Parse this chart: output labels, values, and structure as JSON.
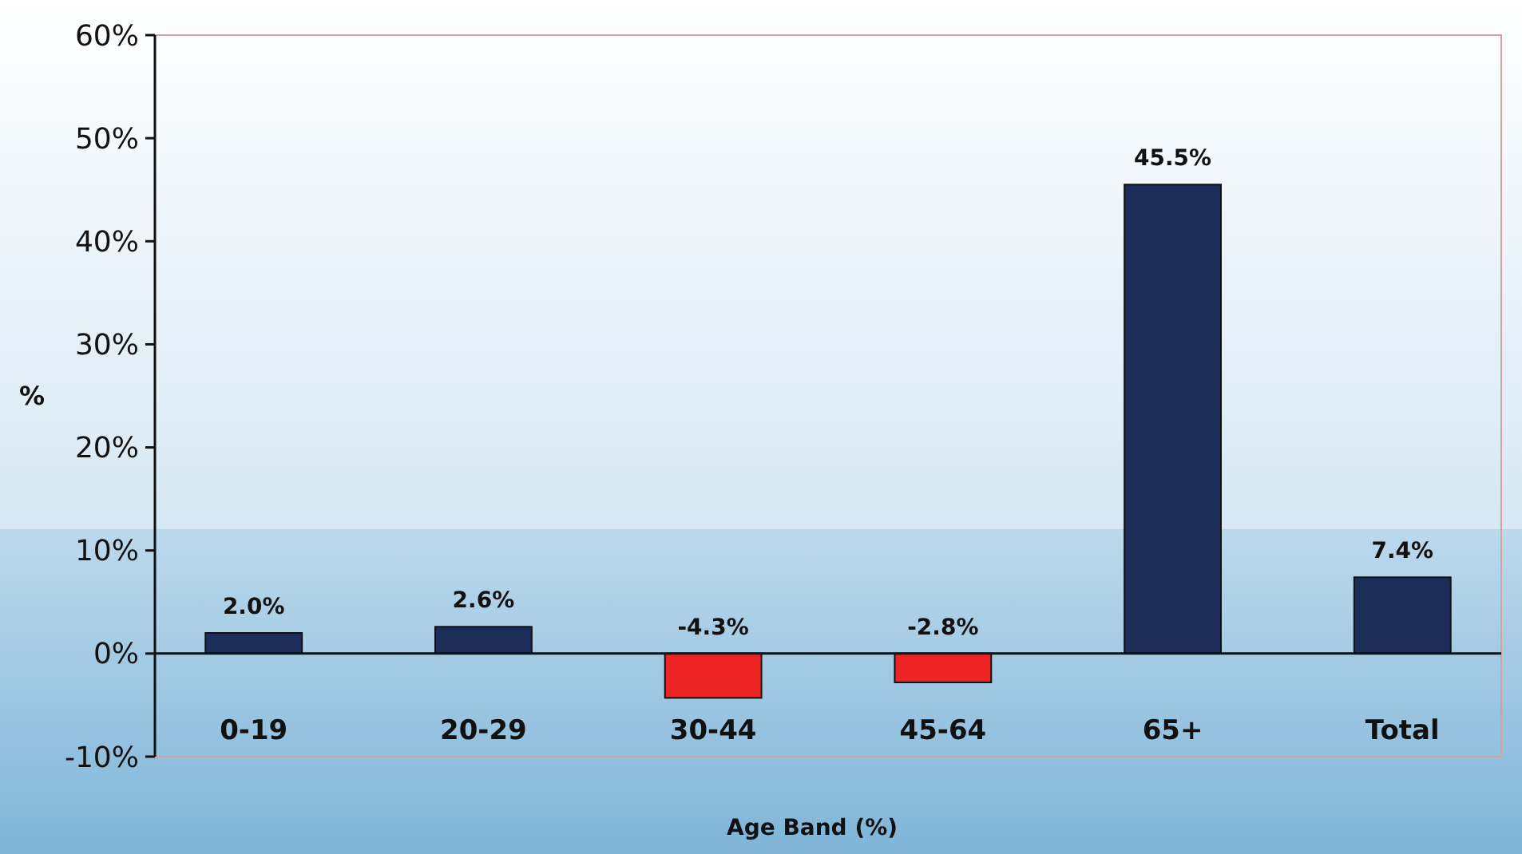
{
  "chart_data": {
    "type": "bar",
    "xlabel": "Age Band (%)",
    "ylabel": "%",
    "categories": [
      "0-19",
      "20-29",
      "30-44",
      "45-64",
      "65+",
      "Total"
    ],
    "values": [
      2.0,
      2.6,
      -4.3,
      -2.8,
      45.5,
      7.4
    ],
    "colors": [
      "#1c2d5a",
      "#1c2d5a",
      "#ee2424",
      "#ee2424",
      "#1c2d5a",
      "#1c2d5a"
    ],
    "value_labels": [
      "2.0%",
      "2.6%",
      "-4.3%",
      "-2.8%",
      "45.5%",
      "7.4%"
    ],
    "ylim": [
      -10,
      60
    ],
    "yticks": [
      {
        "value": -10,
        "label": "-10%"
      },
      {
        "value": 0,
        "label": "0%"
      },
      {
        "value": 10,
        "label": "10%"
      },
      {
        "value": 20,
        "label": "20%"
      },
      {
        "value": 30,
        "label": "30%"
      },
      {
        "value": 40,
        "label": "40%"
      },
      {
        "value": 50,
        "label": "50%"
      },
      {
        "value": 60,
        "label": "60%"
      }
    ]
  }
}
